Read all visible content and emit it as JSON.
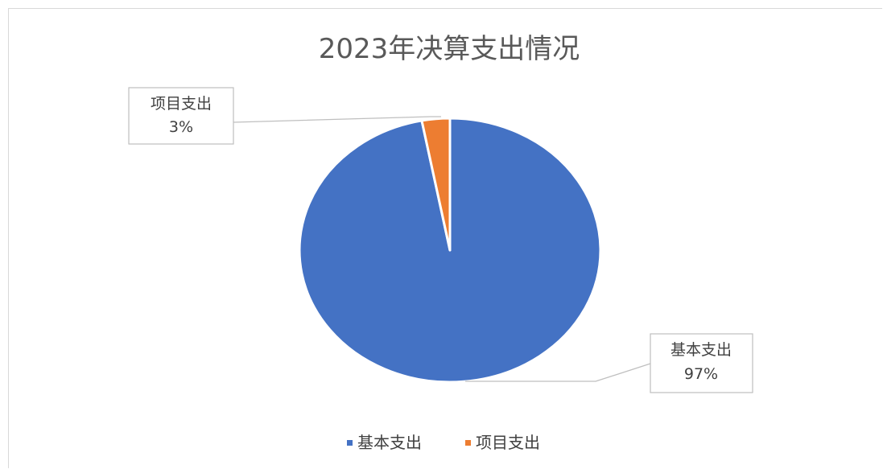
{
  "chart_data": {
    "type": "pie",
    "title": "2023年决算支出情况",
    "categories": [
      "基本支出",
      "项目支出"
    ],
    "values": [
      97,
      3
    ],
    "data_labels": [
      "97%",
      "3%"
    ],
    "colors": [
      "#4472C4",
      "#ED7D31"
    ],
    "legend_position": "bottom"
  }
}
